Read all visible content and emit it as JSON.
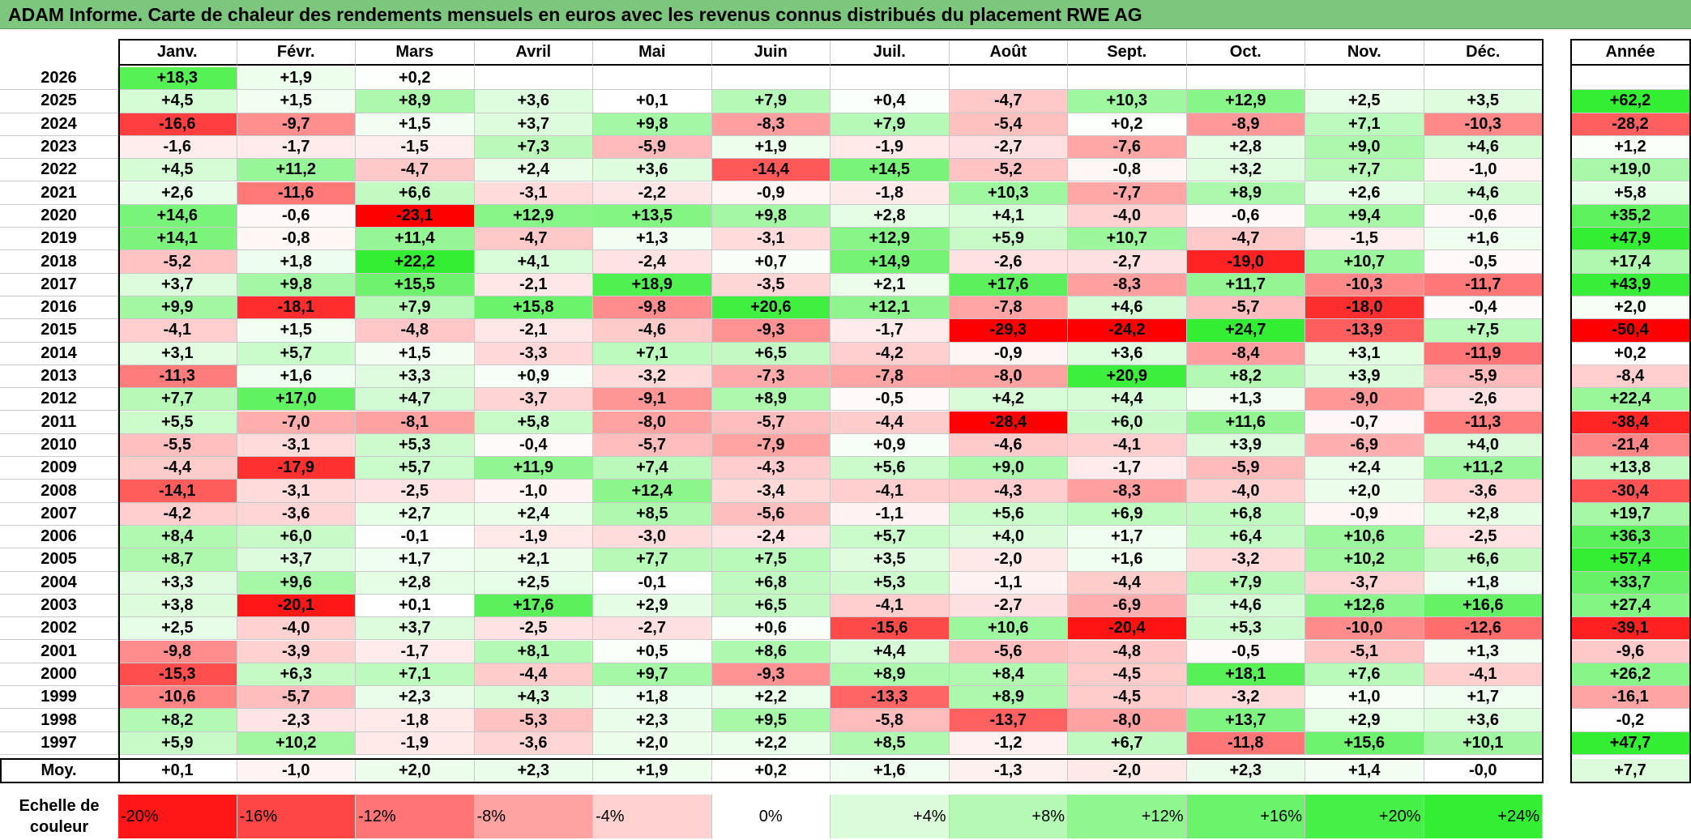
{
  "title": "ADAM Informe. Carte de chaleur des rendements mensuels en euros avec les revenus connus distribués du placement RWE AG",
  "chart_data": {
    "type": "heatmap",
    "months": [
      "Janv.",
      "Févr.",
      "Mars",
      "Avril",
      "Mai",
      "Juin",
      "Juil.",
      "Août",
      "Sept.",
      "Oct.",
      "Nov.",
      "Déc."
    ],
    "year_header": "Année",
    "rows": [
      {
        "year": "2026",
        "values": [
          "+18,3",
          "+1,9",
          "+0,2",
          "",
          "",
          "",
          "",
          "",
          "",
          "",
          "",
          ""
        ],
        "annual": ""
      },
      {
        "year": "2025",
        "values": [
          "+4,5",
          "+1,5",
          "+8,9",
          "+3,6",
          "+0,1",
          "+7,9",
          "+0,4",
          "-4,7",
          "+10,3",
          "+12,9",
          "+2,5",
          "+3,5"
        ],
        "annual": "+62,2"
      },
      {
        "year": "2024",
        "values": [
          "-16,6",
          "-9,7",
          "+1,5",
          "+3,7",
          "+9,8",
          "-8,3",
          "+7,9",
          "-5,4",
          "+0,2",
          "-8,9",
          "+7,1",
          "-10,3"
        ],
        "annual": "-28,2"
      },
      {
        "year": "2023",
        "values": [
          "-1,6",
          "-1,7",
          "-1,5",
          "+7,3",
          "-5,9",
          "+1,9",
          "-1,9",
          "-2,7",
          "-7,6",
          "+2,8",
          "+9,0",
          "+4,6"
        ],
        "annual": "+1,2"
      },
      {
        "year": "2022",
        "values": [
          "+4,5",
          "+11,2",
          "-4,7",
          "+2,4",
          "+3,6",
          "-14,4",
          "+14,5",
          "-5,2",
          "-0,8",
          "+3,2",
          "+7,7",
          "-1,0"
        ],
        "annual": "+19,0"
      },
      {
        "year": "2021",
        "values": [
          "+2,6",
          "-11,6",
          "+6,6",
          "-3,1",
          "-2,2",
          "-0,9",
          "-1,8",
          "+10,3",
          "-7,7",
          "+8,9",
          "+2,6",
          "+4,6"
        ],
        "annual": "+5,8"
      },
      {
        "year": "2020",
        "values": [
          "+14,6",
          "-0,6",
          "-23,1",
          "+12,9",
          "+13,5",
          "+9,8",
          "+2,8",
          "+4,1",
          "-4,0",
          "-0,6",
          "+9,4",
          "-0,6"
        ],
        "annual": "+35,2"
      },
      {
        "year": "2019",
        "values": [
          "+14,1",
          "-0,8",
          "+11,4",
          "-4,7",
          "+1,3",
          "-3,1",
          "+12,9",
          "+5,9",
          "+10,7",
          "-4,7",
          "-1,5",
          "+1,6"
        ],
        "annual": "+47,9"
      },
      {
        "year": "2018",
        "values": [
          "-5,2",
          "+1,8",
          "+22,2",
          "+4,1",
          "-2,4",
          "+0,7",
          "+14,9",
          "-2,6",
          "-2,7",
          "-19,0",
          "+10,7",
          "-0,5"
        ],
        "annual": "+17,4"
      },
      {
        "year": "2017",
        "values": [
          "+3,7",
          "+9,8",
          "+15,5",
          "-2,1",
          "+18,9",
          "-3,5",
          "+2,1",
          "+17,6",
          "-8,3",
          "+11,7",
          "-10,3",
          "-11,7"
        ],
        "annual": "+43,9"
      },
      {
        "year": "2016",
        "values": [
          "+9,9",
          "-18,1",
          "+7,9",
          "+15,8",
          "-9,8",
          "+20,6",
          "+12,1",
          "-7,8",
          "+4,6",
          "-5,7",
          "-18,0",
          "-0,4"
        ],
        "annual": "+2,0"
      },
      {
        "year": "2015",
        "values": [
          "-4,1",
          "+1,5",
          "-4,8",
          "-2,1",
          "-4,6",
          "-9,3",
          "-1,7",
          "-29,3",
          "-24,2",
          "+24,7",
          "-13,9",
          "+7,5"
        ],
        "annual": "-50,4"
      },
      {
        "year": "2014",
        "values": [
          "+3,1",
          "+5,7",
          "+1,5",
          "-3,3",
          "+7,1",
          "+6,5",
          "-4,2",
          "-0,9",
          "+3,6",
          "-8,4",
          "+3,1",
          "-11,9"
        ],
        "annual": "+0,2"
      },
      {
        "year": "2013",
        "values": [
          "-11,3",
          "+1,6",
          "+3,3",
          "+0,9",
          "-3,2",
          "-7,3",
          "-7,8",
          "-8,0",
          "+20,9",
          "+8,2",
          "+3,9",
          "-5,9"
        ],
        "annual": "-8,4"
      },
      {
        "year": "2012",
        "values": [
          "+7,7",
          "+17,0",
          "+4,7",
          "-3,7",
          "-9,1",
          "+8,9",
          "-0,5",
          "+4,2",
          "+4,4",
          "+1,3",
          "-9,0",
          "-2,6"
        ],
        "annual": "+22,4"
      },
      {
        "year": "2011",
        "values": [
          "+5,5",
          "-7,0",
          "-8,1",
          "+5,8",
          "-8,0",
          "-5,7",
          "-4,4",
          "-28,4",
          "+6,0",
          "+11,6",
          "-0,7",
          "-11,3"
        ],
        "annual": "-38,4"
      },
      {
        "year": "2010",
        "values": [
          "-5,5",
          "-3,1",
          "+5,3",
          "-0,4",
          "-5,7",
          "-7,9",
          "+0,9",
          "-4,6",
          "-4,1",
          "+3,9",
          "-6,9",
          "+4,0"
        ],
        "annual": "-21,4"
      },
      {
        "year": "2009",
        "values": [
          "-4,4",
          "-17,9",
          "+5,7",
          "+11,9",
          "+7,4",
          "-4,3",
          "+5,6",
          "+9,0",
          "-1,7",
          "-5,9",
          "+2,4",
          "+11,2"
        ],
        "annual": "+13,8"
      },
      {
        "year": "2008",
        "values": [
          "-14,1",
          "-3,1",
          "-2,5",
          "-1,0",
          "+12,4",
          "-3,4",
          "-4,1",
          "-4,3",
          "-8,3",
          "-4,0",
          "+2,0",
          "-3,6"
        ],
        "annual": "-30,4"
      },
      {
        "year": "2007",
        "values": [
          "-4,2",
          "-3,6",
          "+2,7",
          "+2,4",
          "+8,5",
          "-5,6",
          "-1,1",
          "+5,6",
          "+6,9",
          "+6,8",
          "-0,9",
          "+2,8"
        ],
        "annual": "+19,7"
      },
      {
        "year": "2006",
        "values": [
          "+8,4",
          "+6,0",
          "-0,1",
          "-1,9",
          "-3,0",
          "-2,4",
          "+5,7",
          "+4,0",
          "+1,7",
          "+6,4",
          "+10,6",
          "-2,5"
        ],
        "annual": "+36,3"
      },
      {
        "year": "2005",
        "values": [
          "+8,7",
          "+3,7",
          "+1,7",
          "+2,1",
          "+7,7",
          "+7,5",
          "+3,5",
          "-2,0",
          "+1,6",
          "-3,2",
          "+10,2",
          "+6,6"
        ],
        "annual": "+57,4"
      },
      {
        "year": "2004",
        "values": [
          "+3,3",
          "+9,6",
          "+2,8",
          "+2,5",
          "-0,1",
          "+6,8",
          "+5,3",
          "-1,1",
          "-4,4",
          "+7,9",
          "-3,7",
          "+1,8"
        ],
        "annual": "+33,7"
      },
      {
        "year": "2003",
        "values": [
          "+3,8",
          "-20,1",
          "+0,1",
          "+17,6",
          "+2,9",
          "+6,5",
          "-4,1",
          "-2,7",
          "-6,9",
          "+4,6",
          "+12,6",
          "+16,6"
        ],
        "annual": "+27,4"
      },
      {
        "year": "2002",
        "values": [
          "+2,5",
          "-4,0",
          "+3,7",
          "-2,5",
          "-2,7",
          "+0,6",
          "-15,6",
          "+10,6",
          "-20,4",
          "+5,3",
          "-10,0",
          "-12,6"
        ],
        "annual": "-39,1"
      },
      {
        "year": "2001",
        "values": [
          "-9,8",
          "-3,9",
          "-1,7",
          "+8,1",
          "+0,5",
          "+8,6",
          "+4,4",
          "-5,6",
          "-4,8",
          "-0,5",
          "-5,1",
          "+1,3"
        ],
        "annual": "-9,6"
      },
      {
        "year": "2000",
        "values": [
          "-15,3",
          "+6,3",
          "+7,1",
          "-4,4",
          "+9,7",
          "-9,3",
          "+8,9",
          "+8,4",
          "-4,5",
          "+18,1",
          "+7,6",
          "-4,1"
        ],
        "annual": "+26,2"
      },
      {
        "year": "1999",
        "values": [
          "-10,6",
          "-5,7",
          "+2,3",
          "+4,3",
          "+1,8",
          "+2,2",
          "-13,3",
          "+8,9",
          "-4,5",
          "-3,2",
          "+1,0",
          "+1,7"
        ],
        "annual": "-16,1"
      },
      {
        "year": "1998",
        "values": [
          "+8,2",
          "-2,3",
          "-1,8",
          "-5,3",
          "+2,3",
          "+9,5",
          "-5,8",
          "-13,7",
          "-8,0",
          "+13,7",
          "+2,9",
          "+3,6"
        ],
        "annual": "-0,2"
      },
      {
        "year": "1997",
        "values": [
          "+5,9",
          "+10,2",
          "-1,9",
          "-3,6",
          "+2,0",
          "+2,2",
          "+8,5",
          "-1,2",
          "+6,7",
          "-11,8",
          "+15,6",
          "+10,1"
        ],
        "annual": "+47,7"
      }
    ],
    "average": {
      "label": "Moy.",
      "values": [
        "+0,1",
        "-1,0",
        "+2,0",
        "+2,3",
        "+1,9",
        "+0,2",
        "+1,6",
        "-1,3",
        "-2,0",
        "+2,3",
        "+1,4",
        "-0,0"
      ],
      "annual": "+7,7"
    },
    "color_scale": {
      "label_line1": "Echelle de",
      "label_line2": "couleur",
      "stops": [
        "-20%",
        "-16%",
        "-12%",
        "-8%",
        "-4%",
        "0%",
        "+4%",
        "+8%",
        "+12%",
        "+16%",
        "+20%",
        "+24%"
      ],
      "colors": {
        "neg_max": "#ff0000",
        "zero": "#ffffff",
        "pos_max": "#00ee00"
      }
    }
  }
}
